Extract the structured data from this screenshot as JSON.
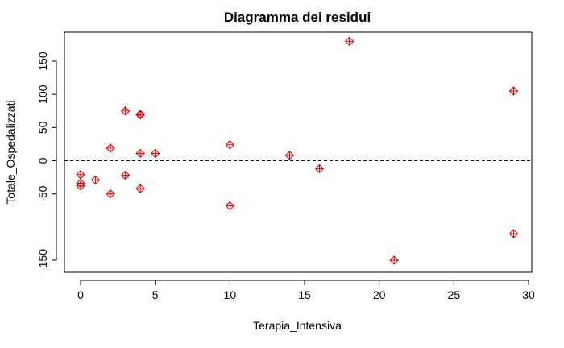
{
  "chart_data": {
    "type": "scatter",
    "title": "Diagramma dei residui",
    "xlabel": "Terapia_Intensiva",
    "ylabel": "Totale_Ospedalizzati",
    "xlim": [
      0,
      30
    ],
    "ylim": [
      -150,
      180
    ],
    "x_ticks": [
      0,
      5,
      10,
      15,
      20,
      25,
      30
    ],
    "y_ticks": [
      -150,
      -50,
      0,
      50,
      100,
      150
    ],
    "grid": false,
    "marker": "diamond-plus",
    "point_color": "#e00000",
    "reference_line": {
      "y": 0,
      "style": "dashed",
      "color": "#000080"
    },
    "points": [
      {
        "x": 0,
        "y": -21
      },
      {
        "x": 0,
        "y": -34
      },
      {
        "x": 0,
        "y": -38
      },
      {
        "x": 1,
        "y": -29
      },
      {
        "x": 2,
        "y": 19
      },
      {
        "x": 2,
        "y": -50
      },
      {
        "x": 3,
        "y": 75
      },
      {
        "x": 3,
        "y": -22
      },
      {
        "x": 4,
        "y": 70
      },
      {
        "x": 4,
        "y": 69
      },
      {
        "x": 4,
        "y": 11
      },
      {
        "x": 4,
        "y": -42
      },
      {
        "x": 5,
        "y": 11
      },
      {
        "x": 10,
        "y": 24
      },
      {
        "x": 10,
        "y": -68
      },
      {
        "x": 14,
        "y": 8
      },
      {
        "x": 16,
        "y": -12
      },
      {
        "x": 18,
        "y": 180
      },
      {
        "x": 21,
        "y": -150
      },
      {
        "x": 29,
        "y": 105
      },
      {
        "x": 29,
        "y": -110
      }
    ]
  }
}
